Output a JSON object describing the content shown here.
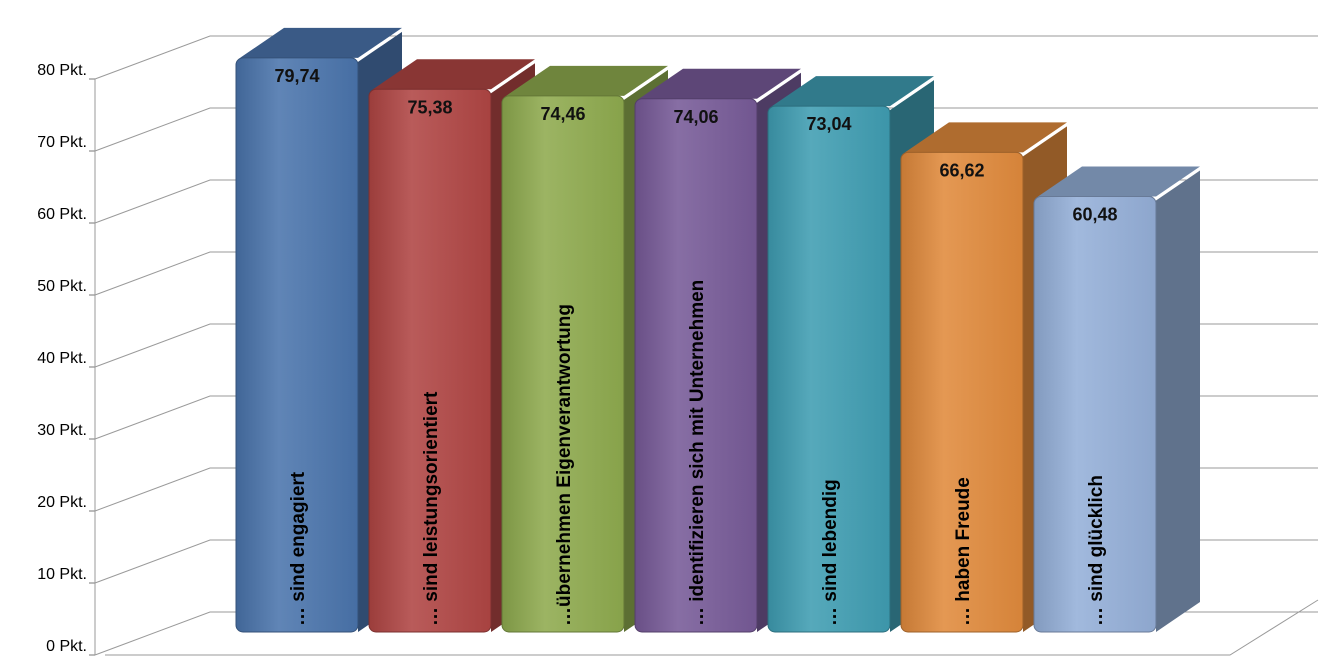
{
  "chart_data": {
    "type": "bar",
    "categories": [
      "… sind engagiert",
      "… sind leistungsorientiert",
      "…übernehmen Eigenverantwortung",
      "… identifizieren sich mit Unternehmen",
      "… sind lebendig",
      "… haben Freude",
      "… sind glücklich"
    ],
    "values": [
      79.74,
      75.38,
      74.46,
      74.06,
      73.04,
      66.62,
      60.48
    ],
    "value_labels": [
      "79,74",
      "75,38",
      "74,46",
      "74,06",
      "73,04",
      "66,62",
      "60,48"
    ],
    "colors": [
      "#4A74AC",
      "#B04543",
      "#8EAA4E",
      "#775A98",
      "#3F9DB2",
      "#E08A3C",
      "#94AFD8"
    ],
    "y_ticks": [
      0,
      10,
      20,
      30,
      40,
      50,
      60,
      70,
      80
    ],
    "y_tick_labels": [
      "0 Pkt.",
      "10 Pkt.",
      "20 Pkt.",
      "30 Pkt.",
      "40 Pkt.",
      "50 Pkt.",
      "60 Pkt.",
      "70 Pkt.",
      "80 Pkt."
    ],
    "ylim": [
      0,
      80
    ],
    "grid": true,
    "title": "",
    "xlabel": "",
    "ylabel": ""
  }
}
